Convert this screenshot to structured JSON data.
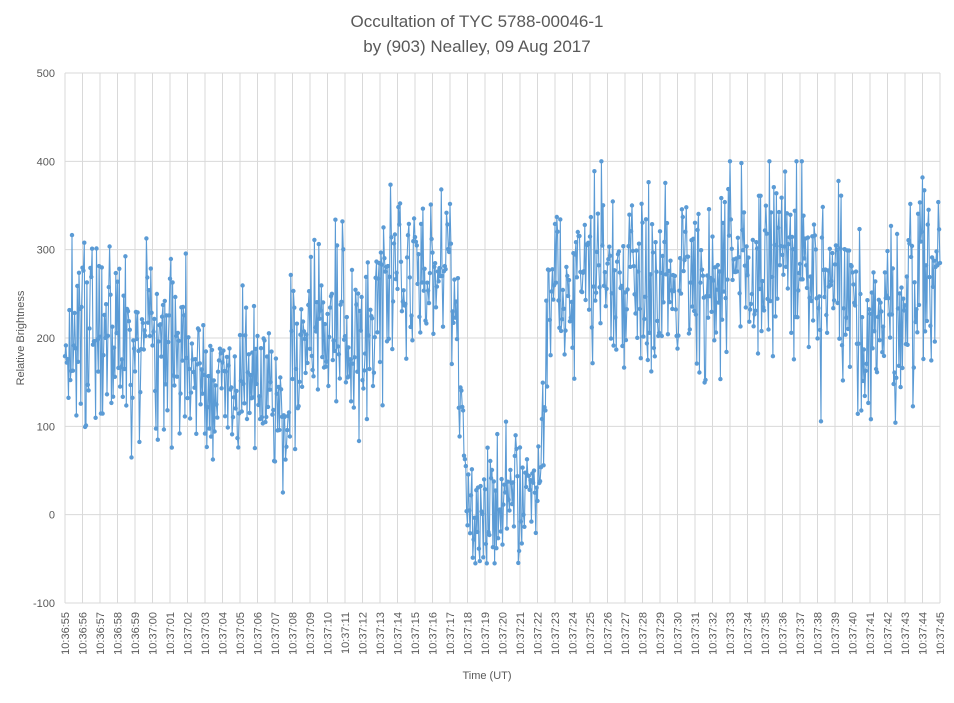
{
  "chart_data": {
    "type": "line",
    "title_lines": [
      "Occultation of TYC 5788-00046-1",
      "by (903) Nealley, 09 Aug 2017"
    ],
    "xlabel": "Time (UT)",
    "ylabel": "Relative Brightness",
    "ylim": [
      -100,
      500
    ],
    "yticks": [
      -100,
      0,
      100,
      200,
      300,
      400,
      500
    ],
    "x_categories": [
      "10:36:55",
      "10:36:56",
      "10:36:57",
      "10:36:58",
      "10:36:59",
      "10:37:00",
      "10:37:01",
      "10:37:02",
      "10:37:03",
      "10:37:04",
      "10:37:05",
      "10:37:06",
      "10:37:07",
      "10:37:08",
      "10:37:09",
      "10:37:10",
      "10:37:11",
      "10:37:12",
      "10:37:13",
      "10:37:14",
      "10:37:15",
      "10:37:16",
      "10:37:17",
      "10:37:18",
      "10:37:19",
      "10:37:20",
      "10:37:21",
      "10:37:22",
      "10:37:23",
      "10:37:24",
      "10:37:25",
      "10:37:26",
      "10:37:27",
      "10:37:28",
      "10:37:29",
      "10:37:30",
      "10:37:31",
      "10:37:32",
      "10:37:33",
      "10:37:34",
      "10:37:35",
      "10:37:36",
      "10:37:37",
      "10:37:38",
      "10:37:39",
      "10:37:40",
      "10:37:41",
      "10:37:42",
      "10:37:43",
      "10:37:44",
      "10:37:45"
    ],
    "grid": "vertical and horizontal",
    "series": [
      {
        "color": "#5b9bd5",
        "values_per_second_mean": [
          175,
          235,
          220,
          200,
          175,
          185,
          200,
          160,
          140,
          135,
          150,
          145,
          140,
          145,
          205,
          225,
          220,
          205,
          230,
          250,
          265,
          275,
          285,
          20,
          15,
          20,
          25,
          15,
          290,
          255,
          285,
          280,
          265,
          280,
          270,
          265,
          285,
          250,
          265,
          265,
          285,
          300,
          280,
          235,
          245,
          225,
          215,
          215,
          250,
          275,
          285
        ],
        "values_per_second_spread": [
          45,
          70,
          70,
          60,
          60,
          55,
          55,
          50,
          45,
          45,
          45,
          45,
          50,
          50,
          50,
          50,
          55,
          55,
          50,
          55,
          55,
          55,
          45,
          40,
          40,
          45,
          45,
          40,
          45,
          55,
          55,
          50,
          45,
          55,
          50,
          50,
          55,
          65,
          60,
          55,
          55,
          60,
          55,
          60,
          65,
          55,
          55,
          55,
          55,
          55,
          45
        ]
      }
    ]
  }
}
